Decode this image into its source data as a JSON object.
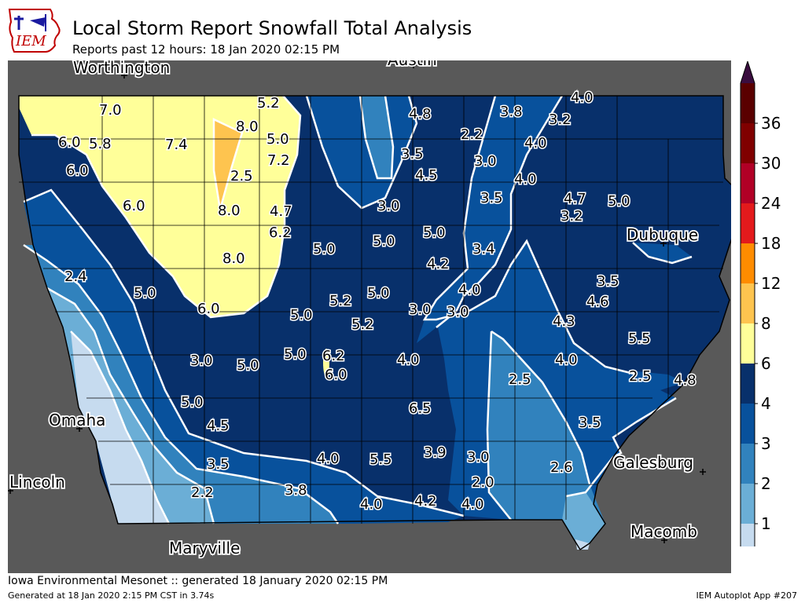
{
  "header": {
    "logo_text": "IEM",
    "title": "Local Storm Report Snowfall Total Analysis",
    "subtitle": "Reports past 12 hours: 18 Jan 2020 02:15 PM"
  },
  "map": {
    "colors": {
      "background": "#595959",
      "state_outline": "#000000",
      "county_lines": "#000000",
      "contour_lines": "#ffffff"
    },
    "cities": [
      {
        "name": "Worthington"
      },
      {
        "name": "Austin"
      },
      {
        "name": "Dubuque"
      },
      {
        "name": "Omaha"
      },
      {
        "name": "Lincoln"
      },
      {
        "name": "Galesburg"
      },
      {
        "name": "Maryville"
      },
      {
        "name": "Macomb"
      }
    ],
    "reports": [
      "7.0",
      "5.2",
      "4.8",
      "3.8",
      "4.0",
      "8.0",
      "3.2",
      "6.0",
      "5.8",
      "7.4",
      "5.0",
      "2.2",
      "4.0",
      "7.2",
      "3.5",
      "3.0",
      "6.0",
      "4.5",
      "4.0",
      "2.5",
      "4.7",
      "5.0",
      "8.0",
      "3.0",
      "3.5",
      "3.2",
      "6.0",
      "4.7",
      "6.2",
      "5.0",
      "5.0",
      "5.0",
      "3.4",
      "8.0",
      "4.2",
      "2.4",
      "4.0",
      "3.5",
      "5.0",
      "5.2",
      "5.0",
      "3.0",
      "3.0",
      "4.6",
      "6.0",
      "5.0",
      "5.2",
      "4.3",
      "5.5",
      "3.0",
      "5.0",
      "5.0",
      "6.2",
      "4.0",
      "4.0",
      "6.0",
      "2.5",
      "2.5",
      "4.8",
      "5.0",
      "6.5",
      "4.5",
      "3.5",
      "3.9",
      "3.0",
      "4.0",
      "5.5",
      "3.5",
      "2.6",
      "2.2",
      "3.8",
      "2.0",
      "4.0",
      "4.2",
      "4.0"
    ]
  },
  "legend": {
    "ticks": [
      "0.01",
      "1",
      "2",
      "3",
      "4",
      "6",
      "8",
      "12",
      "18",
      "24",
      "30",
      "36"
    ],
    "colors": [
      "#c6dbef",
      "#6baed6",
      "#3182bd",
      "#08519c",
      "#08306b",
      "#ffff99",
      "#fec44f",
      "#ff8c00",
      "#e31a1c",
      "#b10026",
      "#800000",
      "#5a0000"
    ],
    "extend_max_color": "#3a0d3f"
  },
  "footer": {
    "source": "Iowa Environmental Mesonet :: generated 18 January 2020 02:15 PM",
    "generated": "Generated at 18 Jan 2020 2:15 PM CST in 3.74s",
    "app": "IEM Autoplot App #207"
  }
}
